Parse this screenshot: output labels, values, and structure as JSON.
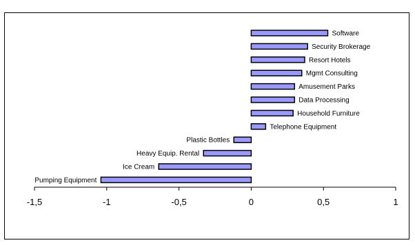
{
  "chart_data": {
    "type": "bar",
    "orientation": "horizontal",
    "categories": [
      "Software",
      "Security Brokerage",
      "Resort Hotels",
      "Mgmt Consulting",
      "Amusement Parks",
      "Data Processing",
      "Household Furniture",
      "Telephone Equipment",
      "Plastic Bottles",
      "Heavy Equip. Rental",
      "Ice Cream",
      "Pumping Equipment"
    ],
    "values": [
      0.53,
      0.39,
      0.37,
      0.35,
      0.3,
      0.3,
      0.29,
      0.1,
      -0.12,
      -0.33,
      -0.64,
      -1.04
    ],
    "xlim": [
      -1.5,
      1
    ],
    "xticks": [
      -1.5,
      -1,
      -0.5,
      0,
      0.5,
      1
    ],
    "xtick_labels": [
      "-1,5",
      "-1",
      "-0,5",
      "0",
      "0,5",
      "1"
    ],
    "title": "",
    "xlabel": "",
    "ylabel": "",
    "grid": false,
    "colors": {
      "bar_fill": "#9999ff",
      "bar_stroke": "#000000",
      "axis": "#000000"
    }
  }
}
